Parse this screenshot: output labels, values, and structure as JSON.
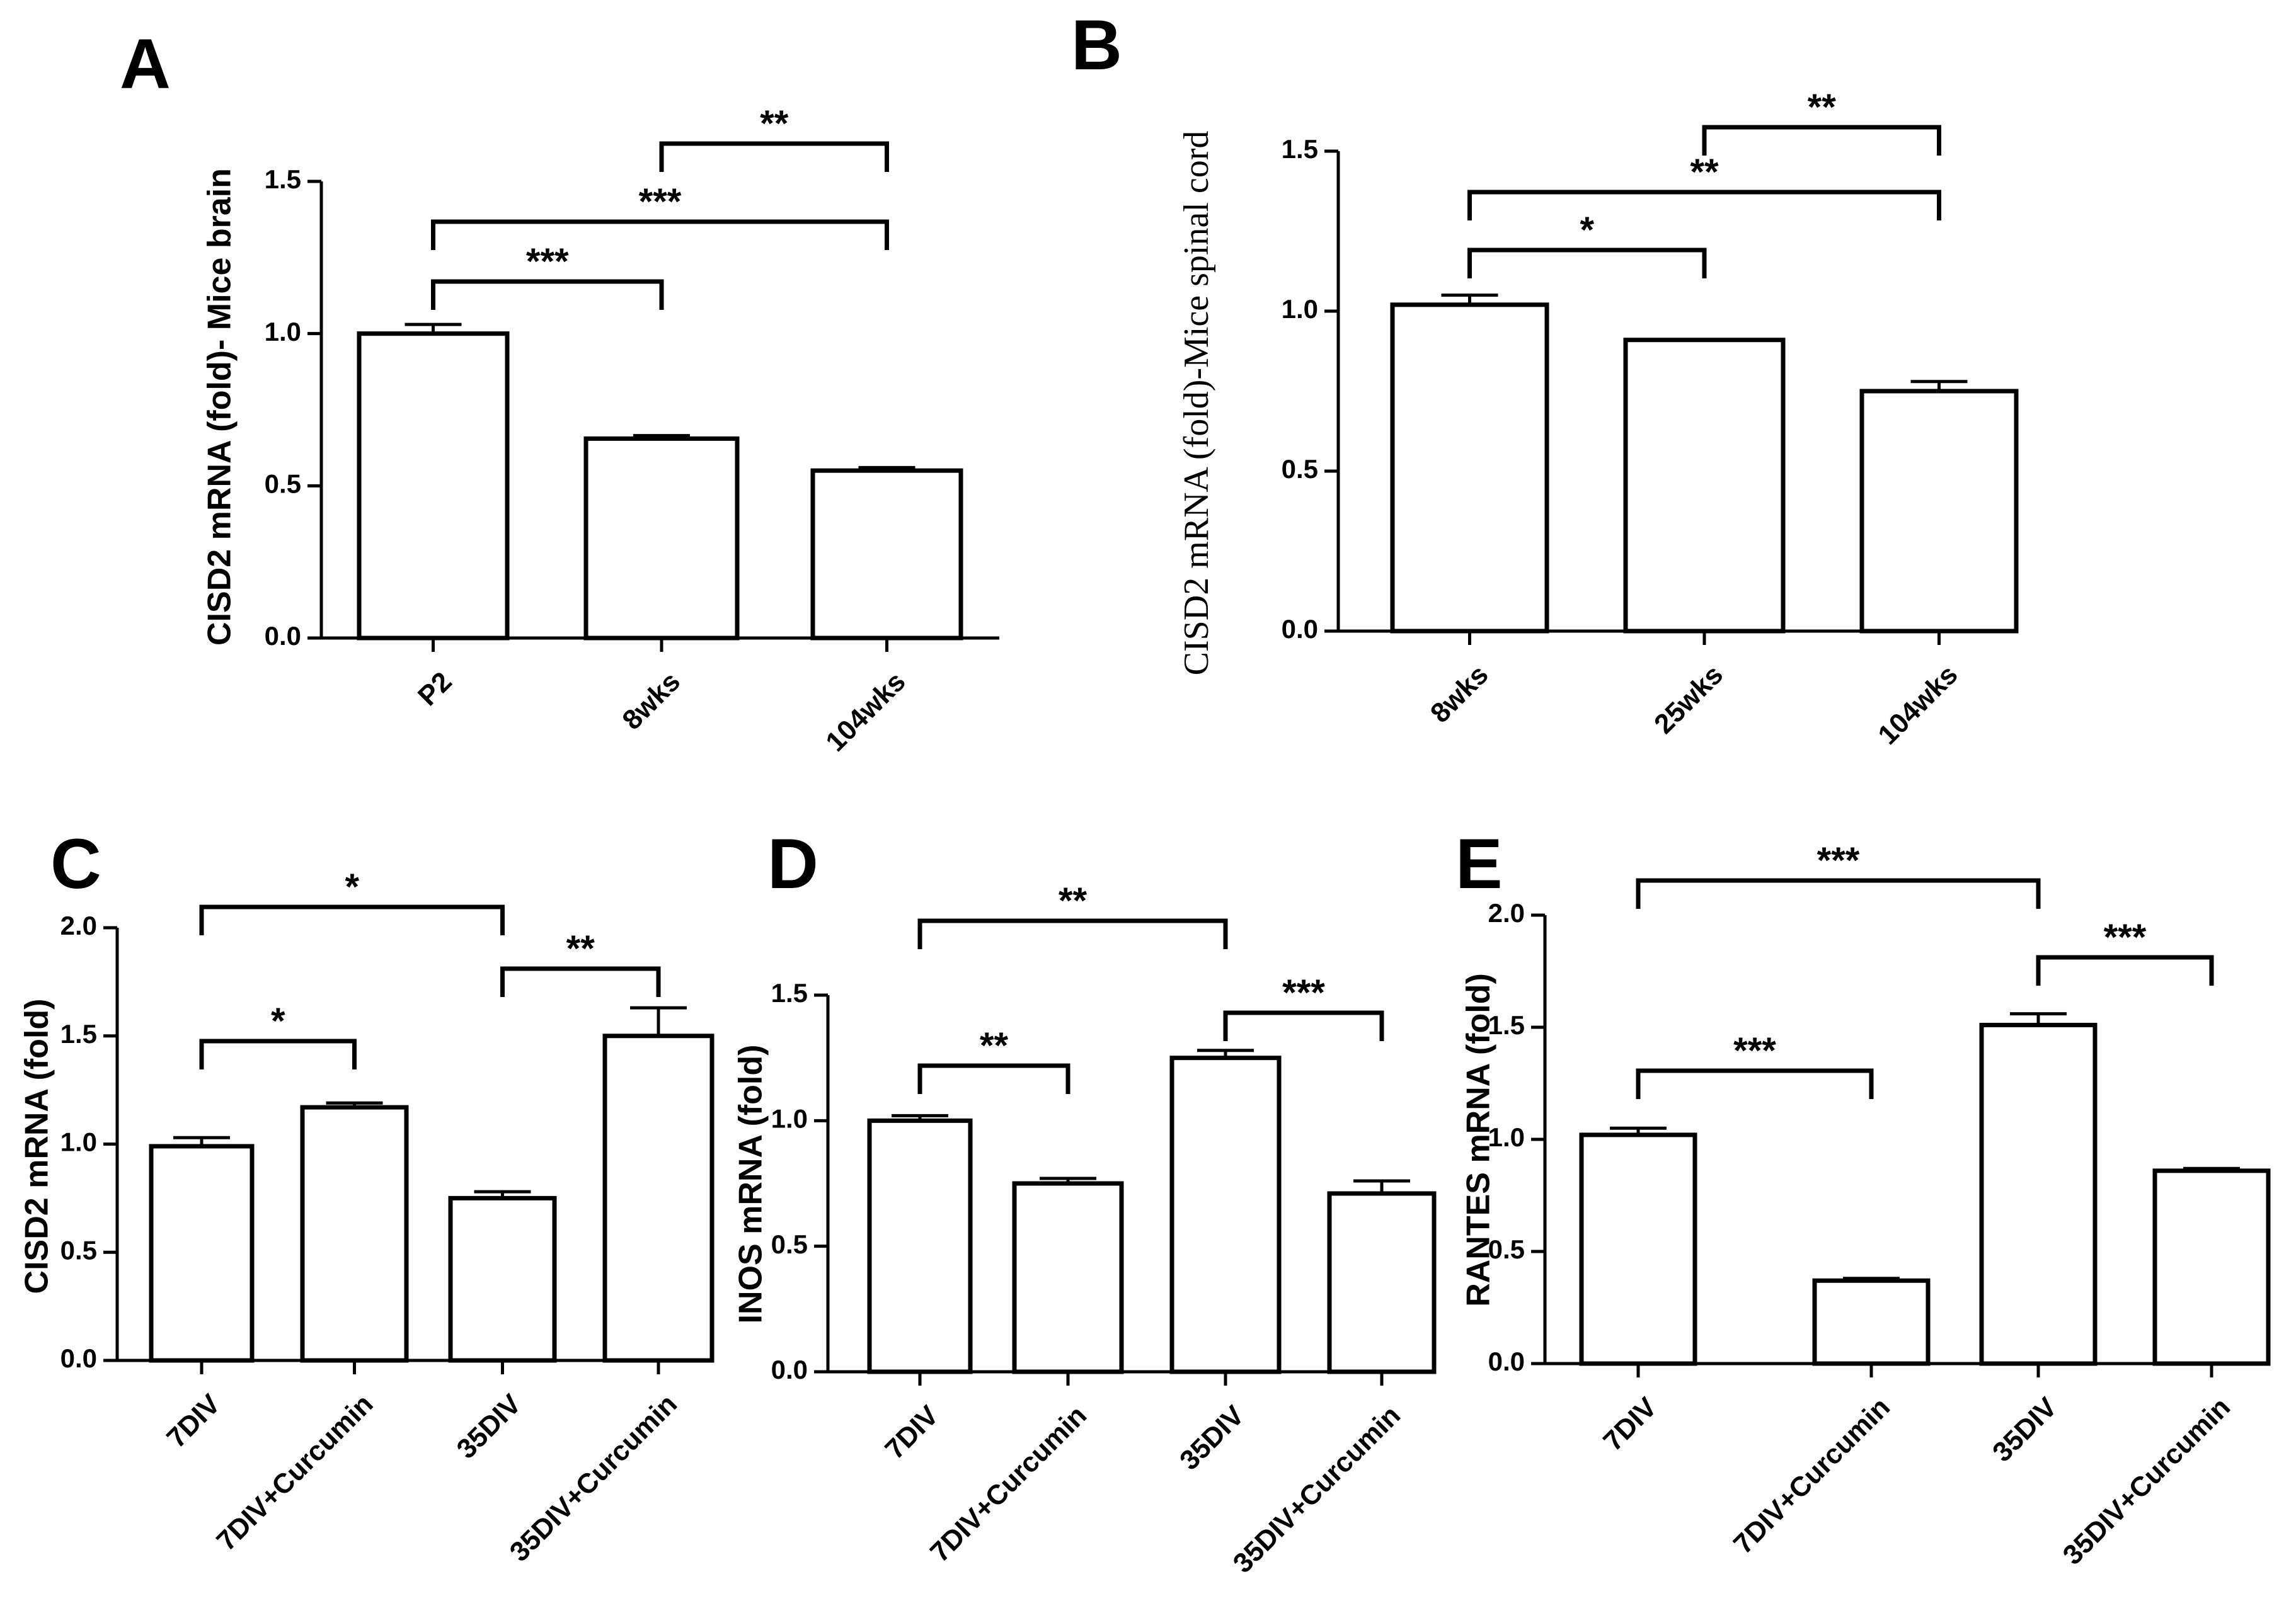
{
  "chart_data": [
    {
      "panel": "A",
      "type": "bar",
      "ylabel": "CISD2 mRNA (fold)- Mice brain",
      "categories": [
        "P2",
        "8wks",
        "104wks"
      ],
      "values": [
        1.0,
        0.655,
        0.55
      ],
      "errors": [
        0.03,
        0.01,
        0.01
      ],
      "ylim": [
        0.0,
        1.5
      ],
      "yticks": [
        "0.0",
        "0.5",
        "1.0",
        "1.5"
      ],
      "significance": [
        {
          "from": 0,
          "to": 1,
          "label": "***"
        },
        {
          "from": 0,
          "to": 2,
          "label": "***"
        },
        {
          "from": 1,
          "to": 2,
          "label": "**"
        }
      ]
    },
    {
      "panel": "B",
      "type": "bar",
      "ylabel": "CISD2 mRNA (fold)-Mice spinal cord",
      "categories": [
        "8wks",
        "25wks",
        "104wks"
      ],
      "values": [
        1.02,
        0.91,
        0.75
      ],
      "errors": [
        0.03,
        0.0,
        0.03
      ],
      "ylim": [
        0.0,
        1.5
      ],
      "yticks": [
        "0.0",
        "0.5",
        "1.0",
        "1.5"
      ],
      "significance": [
        {
          "from": 0,
          "to": 1,
          "label": "*"
        },
        {
          "from": 0,
          "to": 2,
          "label": "**"
        },
        {
          "from": 1,
          "to": 2,
          "label": "**"
        }
      ]
    },
    {
      "panel": "C",
      "type": "bar",
      "ylabel": "CISD2 mRNA (fold)",
      "categories": [
        "7DIV",
        "7DIV+Curcumin",
        "35DIV",
        "35DIV+Curcumin"
      ],
      "values": [
        0.99,
        1.17,
        0.75,
        1.5
      ],
      "errors": [
        0.04,
        0.02,
        0.03,
        0.13
      ],
      "ylim": [
        0.0,
        2.0
      ],
      "yticks": [
        "0.0",
        "0.5",
        "1.0",
        "1.5",
        "2.0"
      ],
      "significance": [
        {
          "from": 0,
          "to": 1,
          "label": "*"
        },
        {
          "from": 0,
          "to": 2,
          "label": "*"
        },
        {
          "from": 2,
          "to": 3,
          "label": "**"
        }
      ]
    },
    {
      "panel": "D",
      "type": "bar",
      "ylabel": "INOS mRNA (fold)",
      "categories": [
        "7DIV",
        "7DIV+Curcumin",
        "35DIV",
        "35DIV+Curcumin"
      ],
      "values": [
        1.0,
        0.75,
        1.25,
        0.71
      ],
      "errors": [
        0.02,
        0.02,
        0.03,
        0.05
      ],
      "ylim": [
        0.0,
        1.5
      ],
      "yticks": [
        "0.0",
        "0.5",
        "1.0",
        "1.5"
      ],
      "significance": [
        {
          "from": 0,
          "to": 1,
          "label": "**"
        },
        {
          "from": 0,
          "to": 2,
          "label": "**"
        },
        {
          "from": 2,
          "to": 3,
          "label": "***"
        }
      ]
    },
    {
      "panel": "E",
      "type": "bar",
      "ylabel": "RANTES mRNA (fold)",
      "categories": [
        "7DIV",
        "7DIV+Curcumin",
        "35DIV",
        "35DIV+Curcumin"
      ],
      "values": [
        1.02,
        0.37,
        1.51,
        0.86
      ],
      "errors": [
        0.03,
        0.01,
        0.05,
        0.01
      ],
      "ylim": [
        0.0,
        2.0
      ],
      "yticks": [
        "0.0",
        "0.5",
        "1.0",
        "1.5",
        "2.0"
      ],
      "significance": [
        {
          "from": 0,
          "to": 1,
          "label": "***"
        },
        {
          "from": 0,
          "to": 2,
          "label": "***"
        },
        {
          "from": 2,
          "to": 3,
          "label": "***"
        }
      ]
    }
  ]
}
